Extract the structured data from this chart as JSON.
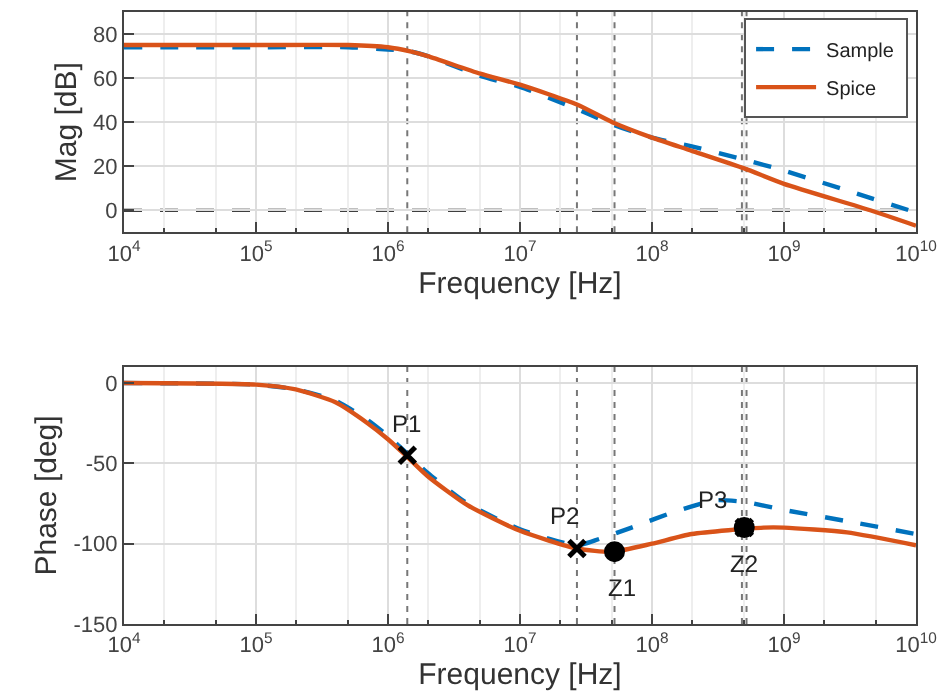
{
  "chart_data": [
    {
      "type": "line",
      "xlabel": "Frequency [Hz]",
      "ylabel": "Mag [dB]",
      "log": "x",
      "grid": true,
      "legend": "top right",
      "xlim": [
        10000,
        10000000000
      ],
      "ylim": [
        -10,
        90
      ],
      "xticks": [
        {
          "value": 10000,
          "label": "10$^{4}$"
        },
        {
          "value": 100000,
          "label": "10$^{5}$"
        },
        {
          "value": 1000000,
          "label": "10$^{6}$"
        },
        {
          "value": 10000000,
          "label": "10$^{7}$"
        },
        {
          "value": 100000000,
          "label": "10$^{8}$"
        },
        {
          "value": 1000000000,
          "label": "10$^{9}$"
        },
        {
          "value": 10000000000,
          "label": "10$^{10}$"
        }
      ],
      "yticks": [
        0,
        20,
        40,
        60,
        80
      ],
      "series": [
        {
          "name": "Sample",
          "color": "#0072bd",
          "line_style": "dashed",
          "x": [
            10000,
            100000,
            500000,
            1000000,
            1500000,
            2000000,
            5000000,
            10000000,
            27000000,
            50000000,
            100000000,
            200000000,
            500000000,
            1000000000,
            3000000000,
            10000000000
          ],
          "values": [
            74,
            74,
            74,
            73,
            72,
            70,
            61,
            56,
            46,
            39,
            33,
            29,
            23,
            18,
            9,
            -1
          ]
        },
        {
          "name": "Spice",
          "color": "#d95319",
          "line_style": "solid",
          "x": [
            10000,
            100000,
            500000,
            1000000,
            1500000,
            2000000,
            5000000,
            10000000,
            27000000,
            50000000,
            100000000,
            200000000,
            500000000,
            1000000000,
            4500000000,
            10000000000
          ],
          "values": [
            75,
            75,
            75,
            74,
            72,
            70,
            62,
            57,
            48,
            40,
            33,
            27,
            19,
            12,
            0,
            -7
          ]
        }
      ],
      "ref_lines": [
        {
          "axis": "y",
          "value": 0,
          "color": "#000000",
          "line_style": "dashed"
        },
        {
          "axis": "x",
          "value": 1400000,
          "color": "#777777",
          "line_style": "dotted"
        },
        {
          "axis": "x",
          "value": 27000000,
          "color": "#777777",
          "line_style": "dotted"
        },
        {
          "axis": "x",
          "value": 52000000,
          "color": "#777777",
          "line_style": "dotted"
        },
        {
          "axis": "x",
          "value": 480000000,
          "color": "#777777",
          "line_style": "dotted"
        },
        {
          "axis": "x",
          "value": 520000000,
          "color": "#777777",
          "line_style": "dotted"
        }
      ]
    },
    {
      "type": "line",
      "xlabel": "Frequency [Hz]",
      "ylabel": "Phase [deg]",
      "log": "x",
      "grid": true,
      "xlim": [
        10000,
        10000000000
      ],
      "ylim": [
        -150,
        10
      ],
      "xticks": [
        {
          "value": 10000,
          "label": "10$^{4}$"
        },
        {
          "value": 100000,
          "label": "10$^{5}$"
        },
        {
          "value": 1000000,
          "label": "10$^{6}$"
        },
        {
          "value": 10000000,
          "label": "10$^{7}$"
        },
        {
          "value": 100000000,
          "label": "10$^{8}$"
        },
        {
          "value": 1000000000,
          "label": "10$^{9}$"
        },
        {
          "value": 10000000000,
          "label": "10$^{10}$"
        }
      ],
      "yticks": [
        -150,
        -100,
        -50,
        0
      ],
      "series": [
        {
          "color": "#0072bd",
          "line_style": "dashed",
          "x": [
            10000,
            100000,
            200000,
            400000,
            700000,
            1000000,
            1400000,
            2000000,
            4000000,
            10000000,
            27000000,
            40000000,
            70000000,
            150000000,
            300000000,
            500000000,
            1000000000,
            3000000000,
            10000000000
          ],
          "values": [
            0,
            -1,
            -4,
            -11,
            -23,
            -33,
            -44,
            -56,
            -75,
            -91,
            -101,
            -97,
            -90,
            -80,
            -73,
            -74,
            -79,
            -86,
            -94
          ]
        },
        {
          "color": "#d95319",
          "line_style": "solid",
          "x": [
            10000,
            100000,
            200000,
            400000,
            700000,
            1000000,
            1400000,
            2000000,
            4000000,
            10000000,
            27000000,
            50000000,
            100000000,
            200000000,
            700000000,
            1000000000,
            3000000000,
            10000000000
          ],
          "values": [
            0,
            -1,
            -4,
            -12,
            -25,
            -35,
            -46,
            -58,
            -76,
            -92,
            -103,
            -105,
            -100,
            -94,
            -90,
            -90,
            -93,
            -101
          ]
        },
        {
          "type": "scatter",
          "marker": "cross",
          "color": "#000000",
          "x": [
            1400000,
            27000000,
            500000000
          ],
          "values": [
            -45,
            -103,
            -90
          ]
        },
        {
          "type": "scatter",
          "marker": "circle",
          "color": "#000000",
          "x": [
            52000000,
            500000000
          ],
          "values": [
            -105,
            -90
          ]
        }
      ],
      "annotations": [
        {
          "text": "P1",
          "x": 1400000,
          "y": -45
        },
        {
          "text": "P2",
          "x": 27000000,
          "y": -103
        },
        {
          "text": "P3",
          "x": 500000000,
          "y": -90
        },
        {
          "text": "Z1",
          "x": 52000000,
          "y": -105
        },
        {
          "text": "Z2",
          "x": 500000000,
          "y": -90
        }
      ],
      "ref_lines": [
        {
          "axis": "x",
          "value": 1400000,
          "color": "#777777",
          "line_style": "dotted"
        },
        {
          "axis": "x",
          "value": 27000000,
          "color": "#777777",
          "line_style": "dotted"
        },
        {
          "axis": "x",
          "value": 52000000,
          "color": "#777777",
          "line_style": "dotted"
        },
        {
          "axis": "x",
          "value": 480000000,
          "color": "#777777",
          "line_style": "dotted"
        },
        {
          "axis": "x",
          "value": 520000000,
          "color": "#777777",
          "line_style": "dotted"
        }
      ]
    }
  ]
}
